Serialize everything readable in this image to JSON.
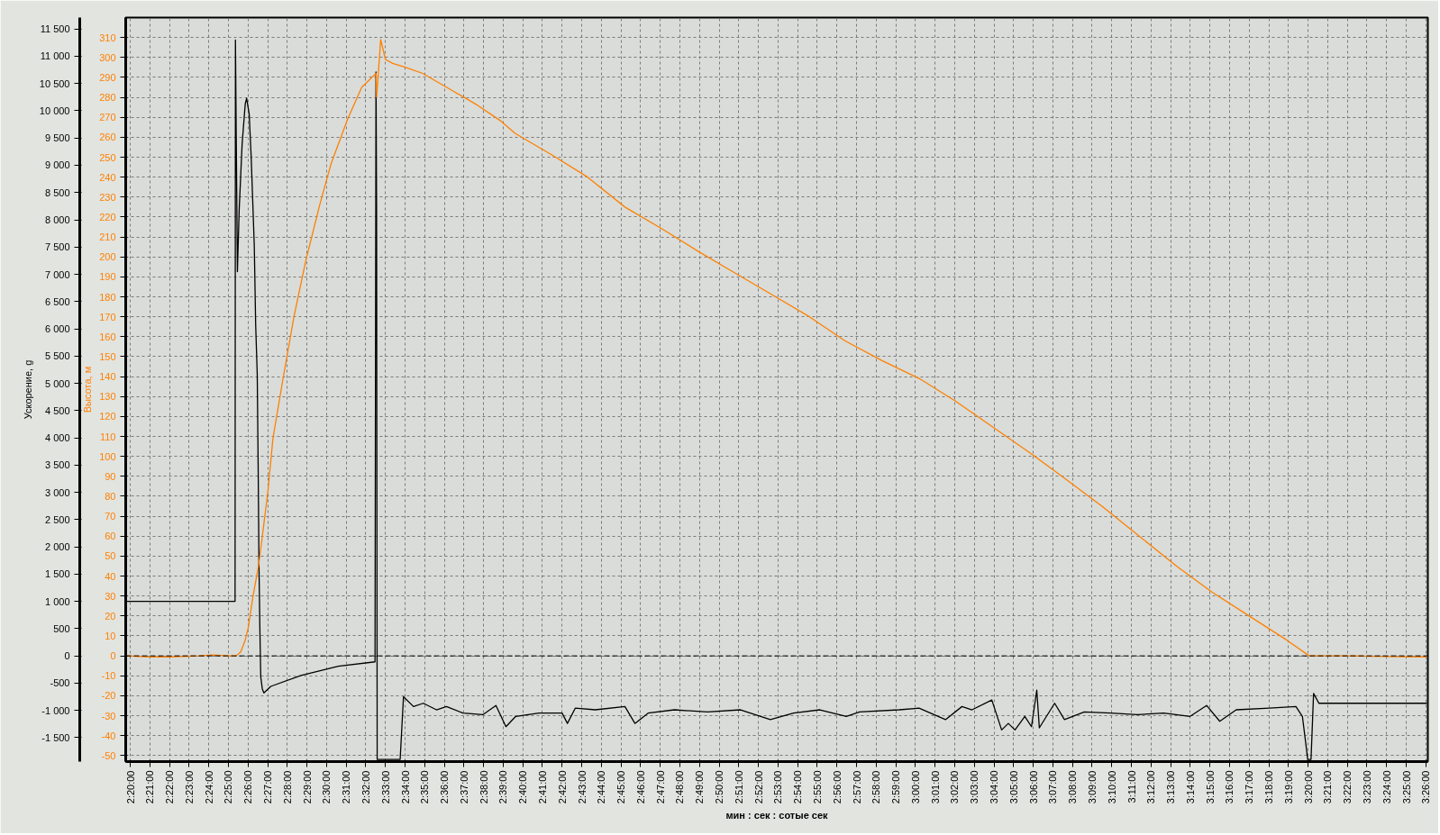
{
  "chart_data": {
    "type": "line",
    "xlabel": "мин : сек : сотые сек",
    "ylabel": "Высота, м",
    "y2label": "Ускорение, g",
    "xlim": [
      139.77,
      206.1
    ],
    "xticks": [
      {
        "value": 140,
        "label": "2:20:00"
      },
      {
        "value": 141,
        "label": "2:21:00"
      },
      {
        "value": 142,
        "label": "2:22:00"
      },
      {
        "value": 143,
        "label": "2:23:00"
      },
      {
        "value": 144,
        "label": "2:24:00"
      },
      {
        "value": 145,
        "label": "2:25:00"
      },
      {
        "value": 146,
        "label": "2:26:00"
      },
      {
        "value": 147,
        "label": "2:27:00"
      },
      {
        "value": 148,
        "label": "2:28:00"
      },
      {
        "value": 149,
        "label": "2:29:00"
      },
      {
        "value": 150,
        "label": "2:30:00"
      },
      {
        "value": 151,
        "label": "2:31:00"
      },
      {
        "value": 152,
        "label": "2:32:00"
      },
      {
        "value": 153,
        "label": "2:33:00"
      },
      {
        "value": 154,
        "label": "2:34:00"
      },
      {
        "value": 155,
        "label": "2:35:00"
      },
      {
        "value": 156,
        "label": "2:36:00"
      },
      {
        "value": 157,
        "label": "2:37:00"
      },
      {
        "value": 158,
        "label": "2:38:00"
      },
      {
        "value": 159,
        "label": "2:39:00"
      },
      {
        "value": 160,
        "label": "2:40:00"
      },
      {
        "value": 161,
        "label": "2:41:00"
      },
      {
        "value": 162,
        "label": "2:42:00"
      },
      {
        "value": 163,
        "label": "2:43:00"
      },
      {
        "value": 164,
        "label": "2:44:00"
      },
      {
        "value": 165,
        "label": "2:45:00"
      },
      {
        "value": 166,
        "label": "2:46:00"
      },
      {
        "value": 167,
        "label": "2:47:00"
      },
      {
        "value": 168,
        "label": "2:48:00"
      },
      {
        "value": 169,
        "label": "2:49:00"
      },
      {
        "value": 170,
        "label": "2:50:00"
      },
      {
        "value": 171,
        "label": "2:51:00"
      },
      {
        "value": 172,
        "label": "2:52:00"
      },
      {
        "value": 173,
        "label": "2:53:00"
      },
      {
        "value": 174,
        "label": "2:54:00"
      },
      {
        "value": 175,
        "label": "2:55:00"
      },
      {
        "value": 176,
        "label": "2:56:00"
      },
      {
        "value": 177,
        "label": "2:57:00"
      },
      {
        "value": 178,
        "label": "2:58:00"
      },
      {
        "value": 179,
        "label": "2:59:00"
      },
      {
        "value": 180,
        "label": "3:00:00"
      },
      {
        "value": 181,
        "label": "3:01:00"
      },
      {
        "value": 182,
        "label": "3:02:00"
      },
      {
        "value": 183,
        "label": "3:03:00"
      },
      {
        "value": 184,
        "label": "3:04:00"
      },
      {
        "value": 185,
        "label": "3:05:00"
      },
      {
        "value": 186,
        "label": "3:06:00"
      },
      {
        "value": 187,
        "label": "3:07:00"
      },
      {
        "value": 188,
        "label": "3:08:00"
      },
      {
        "value": 189,
        "label": "3:09:00"
      },
      {
        "value": 190,
        "label": "3:10:00"
      },
      {
        "value": 191,
        "label": "3:11:00"
      },
      {
        "value": 192,
        "label": "3:12:00"
      },
      {
        "value": 193,
        "label": "3:13:00"
      },
      {
        "value": 194,
        "label": "3:14:00"
      },
      {
        "value": 195,
        "label": "3:15:00"
      },
      {
        "value": 196,
        "label": "3:16:00"
      },
      {
        "value": 197,
        "label": "3:17:00"
      },
      {
        "value": 198,
        "label": "3:18:00"
      },
      {
        "value": 199,
        "label": "3:19:00"
      },
      {
        "value": 200,
        "label": "3:20:00"
      },
      {
        "value": 201,
        "label": "3:21:00"
      },
      {
        "value": 202,
        "label": "3:22:00"
      },
      {
        "value": 203,
        "label": "3:23:00"
      },
      {
        "value": 204,
        "label": "3:24:00"
      },
      {
        "value": 205,
        "label": "3:25:00"
      },
      {
        "value": 206,
        "label": "3:26:00"
      }
    ],
    "ylim": [
      -53,
      320
    ],
    "yticks": [
      -50,
      -40,
      -30,
      -20,
      -10,
      0,
      10,
      20,
      30,
      40,
      50,
      60,
      70,
      80,
      90,
      100,
      110,
      120,
      130,
      140,
      150,
      160,
      170,
      180,
      190,
      200,
      210,
      220,
      230,
      240,
      250,
      260,
      270,
      280,
      290,
      300,
      310
    ],
    "y2lim": [
      -1940,
      11710
    ],
    "y2ticks": [
      {
        "value": -1500,
        "label": "-1 500"
      },
      {
        "value": -1000,
        "label": "-1 000"
      },
      -500,
      0,
      500,
      {
        "value": 1000,
        "label": "1 000"
      },
      {
        "value": 1500,
        "label": "1 500"
      },
      {
        "value": 2000,
        "label": "2 000"
      },
      {
        "value": 2500,
        "label": "2 500"
      },
      {
        "value": 3000,
        "label": "3 000"
      },
      {
        "value": 3500,
        "label": "3 500"
      },
      {
        "value": 4000,
        "label": "4 000"
      },
      {
        "value": 4500,
        "label": "4 500"
      },
      {
        "value": 5000,
        "label": "5 000"
      },
      {
        "value": 5500,
        "label": "5 500"
      },
      {
        "value": 6000,
        "label": "6 000"
      },
      {
        "value": 6500,
        "label": "6 500"
      },
      {
        "value": 7000,
        "label": "7 000"
      },
      {
        "value": 7500,
        "label": "7 500"
      },
      {
        "value": 8000,
        "label": "8 000"
      },
      {
        "value": 8500,
        "label": "8 500"
      },
      {
        "value": 9000,
        "label": "9 000"
      },
      {
        "value": 9500,
        "label": "9 500"
      },
      {
        "value": 10000,
        "label": "10 000"
      },
      {
        "value": 10500,
        "label": "10 500"
      },
      {
        "value": 11000,
        "label": "11 000"
      },
      {
        "value": 11500,
        "label": "11 500"
      }
    ],
    "grid": true,
    "ref_lines": [
      {
        "axis": "y",
        "value": 0,
        "color": "#000000",
        "line_style": "dashed"
      }
    ],
    "series": [
      {
        "color": "#000000",
        "axis": "y2",
        "x": [
          139.8,
          145.34,
          145.36,
          145.4,
          145.46,
          145.55,
          145.7,
          145.86,
          145.93,
          146.06,
          146.16,
          146.32,
          146.39,
          146.47,
          146.52,
          146.56,
          146.61,
          146.65,
          146.73,
          146.81,
          147.16,
          148.7,
          150.6,
          152.47,
          152.52,
          152.55,
          152.58,
          153.75,
          153.92,
          154.43,
          154.93,
          155.6,
          156.11,
          156.95,
          157.96,
          158.63,
          159.14,
          159.64,
          160.82,
          162.0,
          162.27,
          162.67,
          163.69,
          165.2,
          165.71,
          166.38,
          167.73,
          169.41,
          171.09,
          172.61,
          173.79,
          175.13,
          176.48,
          177.15,
          179.17,
          180.18,
          181.53,
          182.37,
          182.88,
          183.89,
          184.39,
          184.73,
          185.07,
          185.57,
          185.91,
          186.18,
          186.31,
          187.09,
          187.59,
          188.6,
          189.95,
          191.3,
          192.64,
          193.99,
          194.83,
          195.5,
          196.34,
          198.03,
          199.38,
          199.71,
          199.88,
          199.98,
          200.15,
          200.28,
          200.55,
          206.03
        ],
        "values": [
          1000,
          1000,
          11300,
          9550,
          7050,
          8180,
          9390,
          10130,
          10230,
          9940,
          9170,
          7520,
          6080,
          5170,
          3360,
          1620,
          380,
          -390,
          -610,
          -680,
          -560,
          -360,
          -190,
          -110,
          10710,
          8200,
          -1900,
          -1900,
          -750,
          -930,
          -870,
          -990,
          -930,
          -1050,
          -1080,
          -910,
          -1300,
          -1110,
          -1050,
          -1050,
          -1240,
          -960,
          -990,
          -930,
          -1240,
          -1050,
          -990,
          -1030,
          -990,
          -1170,
          -1050,
          -990,
          -1110,
          -1030,
          -990,
          -960,
          -1170,
          -930,
          -990,
          -810,
          -1360,
          -1240,
          -1360,
          -1110,
          -1300,
          -630,
          -1320,
          -870,
          -1170,
          -1030,
          -1050,
          -1080,
          -1050,
          -1110,
          -910,
          -1200,
          -990,
          -960,
          -930,
          -1110,
          -1600,
          -1900,
          -1900,
          -690,
          -870,
          -870
        ]
      },
      {
        "color": "#ff8000",
        "x": [
          139.8,
          141.0,
          142.0,
          143.5,
          144.2,
          145.0,
          145.4,
          145.63,
          145.86,
          146.01,
          146.24,
          146.55,
          147.01,
          147.27,
          147.75,
          148.34,
          148.94,
          149.65,
          150.24,
          151.07,
          151.79,
          152.52,
          152.55,
          152.76,
          153.0,
          153.37,
          154.04,
          154.9,
          156.3,
          157.7,
          158.9,
          159.6,
          161.5,
          163.3,
          165.2,
          167.1,
          168.9,
          170.8,
          172.7,
          174.6,
          176.4,
          178.3,
          180.2,
          182.0,
          183.9,
          185.8,
          187.6,
          189.5,
          191.4,
          193.3,
          195.1,
          197.0,
          198.9,
          200.06,
          202.0,
          204.0,
          206.03
        ],
        "values": [
          0,
          -0.5,
          -0.5,
          0,
          0.5,
          0,
          0,
          2,
          8,
          14,
          29,
          46,
          82,
          109,
          137,
          170,
          198,
          226,
          247,
          269,
          285,
          292,
          280,
          309,
          299,
          297,
          295,
          292,
          284,
          276,
          268,
          262,
          251,
          240,
          225,
          214,
          203,
          192,
          181,
          170,
          158,
          148,
          139,
          128,
          115,
          102,
          89,
          75,
          60,
          45,
          32,
          20,
          8,
          0,
          0,
          -0.3,
          -0.5
        ]
      }
    ]
  }
}
